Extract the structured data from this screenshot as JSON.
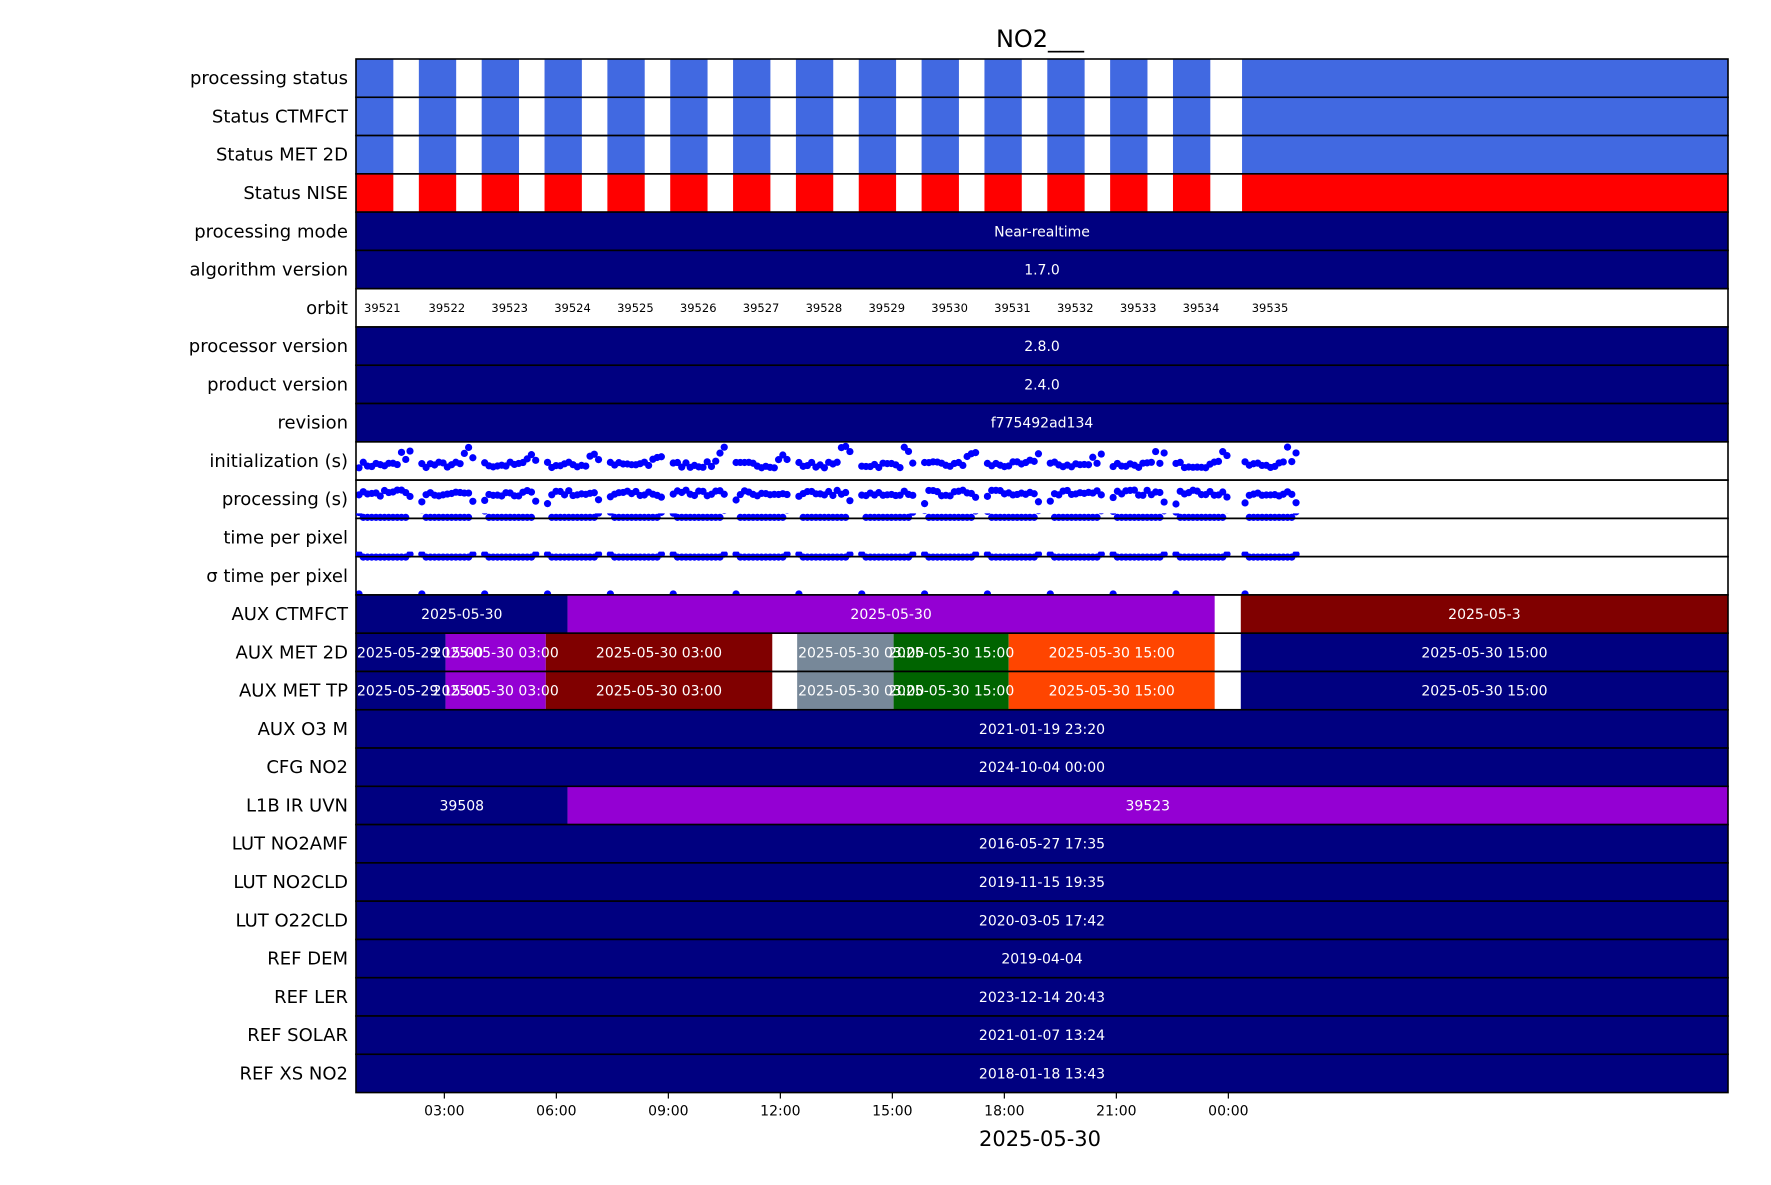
{
  "chart_data": {
    "type": "timeline",
    "title": "NO2___",
    "xlabel": "2025-05-30",
    "x_range": [
      "2025-05-29 12:38",
      "2025-05-31 01:23"
    ],
    "x_ticks": [
      {
        "time": "2025-05-29 15:00",
        "label": "03:00"
      },
      {
        "time": "2025-05-29 18:00",
        "label": "06:00"
      },
      {
        "time": "2025-05-29 21:00",
        "label": "09:00"
      },
      {
        "time": "2025-05-30 00:00",
        "label": "12:00"
      },
      {
        "time": "2025-05-30 03:00",
        "label": "15:00"
      },
      {
        "time": "2025-05-30 06:00",
        "label": "18:00"
      },
      {
        "time": "2025-05-30 09:00",
        "label": "21:00"
      },
      {
        "time": "2025-05-30 12:00",
        "label": "00:00"
      }
    ],
    "colors": {
      "navy": "#000080",
      "status_ok": "#4169e1",
      "status_nise": "#ff0000",
      "violet": "#9400d3",
      "maroon": "#800000",
      "slate": "#778899",
      "green": "#006400",
      "orangered": "#ff4500",
      "marker": "#0000ff"
    },
    "orbits": [
      {
        "orbit": "39521",
        "start": "2025-05-29 12:38",
        "end": "2025-05-29 13:38"
      },
      {
        "orbit": "39522",
        "start": "2025-05-29 14:19",
        "end": "2025-05-29 15:19"
      },
      {
        "orbit": "39523",
        "start": "2025-05-29 16:00",
        "end": "2025-05-29 17:00"
      },
      {
        "orbit": "39524",
        "start": "2025-05-29 17:41",
        "end": "2025-05-29 18:41"
      },
      {
        "orbit": "39525",
        "start": "2025-05-29 19:22",
        "end": "2025-05-29 20:22"
      },
      {
        "orbit": "39526",
        "start": "2025-05-29 21:03",
        "end": "2025-05-29 22:03"
      },
      {
        "orbit": "39527",
        "start": "2025-05-29 22:44",
        "end": "2025-05-29 23:44"
      },
      {
        "orbit": "39528",
        "start": "2025-05-30 00:25",
        "end": "2025-05-30 01:25"
      },
      {
        "orbit": "39529",
        "start": "2025-05-30 02:06",
        "end": "2025-05-30 03:06"
      },
      {
        "orbit": "39530",
        "start": "2025-05-30 03:47",
        "end": "2025-05-30 04:47"
      },
      {
        "orbit": "39531",
        "start": "2025-05-30 05:28",
        "end": "2025-05-30 06:28"
      },
      {
        "orbit": "39532",
        "start": "2025-05-30 07:09",
        "end": "2025-05-30 08:09"
      },
      {
        "orbit": "39533",
        "start": "2025-05-30 08:50",
        "end": "2025-05-30 09:50"
      },
      {
        "orbit": "39534",
        "start": "2025-05-30 10:31",
        "end": "2025-05-30 11:31"
      },
      {
        "orbit": "39535",
        "start": "2025-05-30 12:22",
        "end": "2025-05-31 01:23"
      }
    ],
    "rows": [
      {
        "label": "processing status",
        "kind": "orbit_status",
        "color": "status_ok"
      },
      {
        "label": "Status CTMFCT",
        "kind": "orbit_status",
        "color": "status_ok"
      },
      {
        "label": "Status MET 2D",
        "kind": "orbit_status",
        "color": "status_ok"
      },
      {
        "label": "Status NISE",
        "kind": "orbit_status",
        "color": "status_nise"
      },
      {
        "label": "processing mode",
        "kind": "bands",
        "bands": [
          {
            "start": "2025-05-29 12:38",
            "end": "2025-05-31 01:23",
            "color": "navy",
            "text": "Near-realtime"
          }
        ]
      },
      {
        "label": "algorithm version",
        "kind": "bands",
        "bands": [
          {
            "start": "2025-05-29 12:38",
            "end": "2025-05-31 01:23",
            "color": "navy",
            "text": "1.7.0"
          }
        ]
      },
      {
        "label": "orbit",
        "kind": "orbit_numbers"
      },
      {
        "label": "processor version",
        "kind": "bands",
        "bands": [
          {
            "start": "2025-05-29 12:38",
            "end": "2025-05-31 01:23",
            "color": "navy",
            "text": "2.8.0"
          }
        ]
      },
      {
        "label": "product version",
        "kind": "bands",
        "bands": [
          {
            "start": "2025-05-29 12:38",
            "end": "2025-05-31 01:23",
            "color": "navy",
            "text": "2.4.0"
          }
        ]
      },
      {
        "label": "revision",
        "kind": "bands",
        "bands": [
          {
            "start": "2025-05-29 12:38",
            "end": "2025-05-31 01:23",
            "color": "navy",
            "text": "f775492ad134"
          }
        ]
      },
      {
        "label": "initialization (s)",
        "kind": "scatter",
        "pattern": "init"
      },
      {
        "label": "processing (s)",
        "kind": "scatter",
        "pattern": "proc"
      },
      {
        "label": "time per pixel",
        "kind": "scatter",
        "pattern": "tpp"
      },
      {
        "label": "σ time per pixel",
        "kind": "scatter",
        "pattern": "sigma"
      },
      {
        "label": "AUX CTMFCT",
        "kind": "bands",
        "bands": [
          {
            "start": "2025-05-29 12:38",
            "end": "2025-05-29 18:18",
            "color": "navy",
            "text": "2025-05-30"
          },
          {
            "start": "2025-05-29 18:18",
            "end": "2025-05-30 11:38",
            "color": "violet",
            "text": "2025-05-30"
          },
          {
            "start": "2025-05-30 12:20",
            "end": "2025-05-31 01:23",
            "color": "maroon",
            "text": "2025-05-3"
          }
        ]
      },
      {
        "label": "AUX MET 2D",
        "kind": "bands",
        "bands": [
          {
            "start": "2025-05-29 12:38",
            "end": "2025-05-29 15:02",
            "color": "navy",
            "text": "2025-05-29 15:00"
          },
          {
            "start": "2025-05-29 15:02",
            "end": "2025-05-29 17:43",
            "color": "violet",
            "text": "2025-05-30 03:00"
          },
          {
            "start": "2025-05-29 17:43",
            "end": "2025-05-29 23:47",
            "color": "maroon",
            "text": "2025-05-30 03:00"
          },
          {
            "start": "2025-05-30 00:27",
            "end": "2025-05-30 03:02",
            "color": "slate",
            "text": "2025-05-30 03:00"
          },
          {
            "start": "2025-05-30 03:02",
            "end": "2025-05-30 06:07",
            "color": "green",
            "text": "2025-05-30 15:00"
          },
          {
            "start": "2025-05-30 06:07",
            "end": "2025-05-30 11:38",
            "color": "orangered",
            "text": "2025-05-30 15:00"
          },
          {
            "start": "2025-05-30 12:20",
            "end": "2025-05-31 01:23",
            "color": "navy",
            "text": "2025-05-30 15:00"
          }
        ]
      },
      {
        "label": "AUX MET TP",
        "kind": "bands",
        "bands": [
          {
            "start": "2025-05-29 12:38",
            "end": "2025-05-29 15:02",
            "color": "navy",
            "text": "2025-05-29 15:00"
          },
          {
            "start": "2025-05-29 15:02",
            "end": "2025-05-29 17:43",
            "color": "violet",
            "text": "2025-05-30 03:00"
          },
          {
            "start": "2025-05-29 17:43",
            "end": "2025-05-29 23:47",
            "color": "maroon",
            "text": "2025-05-30 03:00"
          },
          {
            "start": "2025-05-30 00:27",
            "end": "2025-05-30 03:02",
            "color": "slate",
            "text": "2025-05-30 03:00"
          },
          {
            "start": "2025-05-30 03:02",
            "end": "2025-05-30 06:07",
            "color": "green",
            "text": "2025-05-30 15:00"
          },
          {
            "start": "2025-05-30 06:07",
            "end": "2025-05-30 11:38",
            "color": "orangered",
            "text": "2025-05-30 15:00"
          },
          {
            "start": "2025-05-30 12:20",
            "end": "2025-05-31 01:23",
            "color": "navy",
            "text": "2025-05-30 15:00"
          }
        ]
      },
      {
        "label": "AUX O3   M",
        "kind": "bands",
        "bands": [
          {
            "start": "2025-05-29 12:38",
            "end": "2025-05-31 01:23",
            "color": "navy",
            "text": "2021-01-19 23:20"
          }
        ]
      },
      {
        "label": "CFG NO2",
        "kind": "bands",
        "bands": [
          {
            "start": "2025-05-29 12:38",
            "end": "2025-05-31 01:23",
            "color": "navy",
            "text": "2024-10-04 00:00"
          }
        ]
      },
      {
        "label": "L1B IR UVN",
        "kind": "bands",
        "bands": [
          {
            "start": "2025-05-29 12:38",
            "end": "2025-05-29 18:18",
            "color": "navy",
            "text": "39508"
          },
          {
            "start": "2025-05-29 18:18",
            "end": "2025-05-31 01:23",
            "color": "violet",
            "text": "39523"
          }
        ]
      },
      {
        "label": "LUT NO2AMF",
        "kind": "bands",
        "bands": [
          {
            "start": "2025-05-29 12:38",
            "end": "2025-05-31 01:23",
            "color": "navy",
            "text": "2016-05-27 17:35"
          }
        ]
      },
      {
        "label": "LUT NO2CLD",
        "kind": "bands",
        "bands": [
          {
            "start": "2025-05-29 12:38",
            "end": "2025-05-31 01:23",
            "color": "navy",
            "text": "2019-11-15 19:35"
          }
        ]
      },
      {
        "label": "LUT O22CLD",
        "kind": "bands",
        "bands": [
          {
            "start": "2025-05-29 12:38",
            "end": "2025-05-31 01:23",
            "color": "navy",
            "text": "2020-03-05 17:42"
          }
        ]
      },
      {
        "label": "REF DEM",
        "kind": "bands",
        "bands": [
          {
            "start": "2025-05-29 12:38",
            "end": "2025-05-31 01:23",
            "color": "navy",
            "text": "2019-04-04"
          }
        ]
      },
      {
        "label": "REF LER",
        "kind": "bands",
        "bands": [
          {
            "start": "2025-05-29 12:38",
            "end": "2025-05-31 01:23",
            "color": "navy",
            "text": "2023-12-14 20:43"
          }
        ]
      },
      {
        "label": "REF SOLAR",
        "kind": "bands",
        "bands": [
          {
            "start": "2025-05-29 12:38",
            "end": "2025-05-31 01:23",
            "color": "navy",
            "text": "2021-01-07 13:24"
          }
        ]
      },
      {
        "label": "REF XS NO2",
        "kind": "bands",
        "bands": [
          {
            "start": "2025-05-29 12:38",
            "end": "2025-05-31 01:23",
            "color": "navy",
            "text": "2018-01-18 13:43"
          }
        ]
      }
    ]
  }
}
